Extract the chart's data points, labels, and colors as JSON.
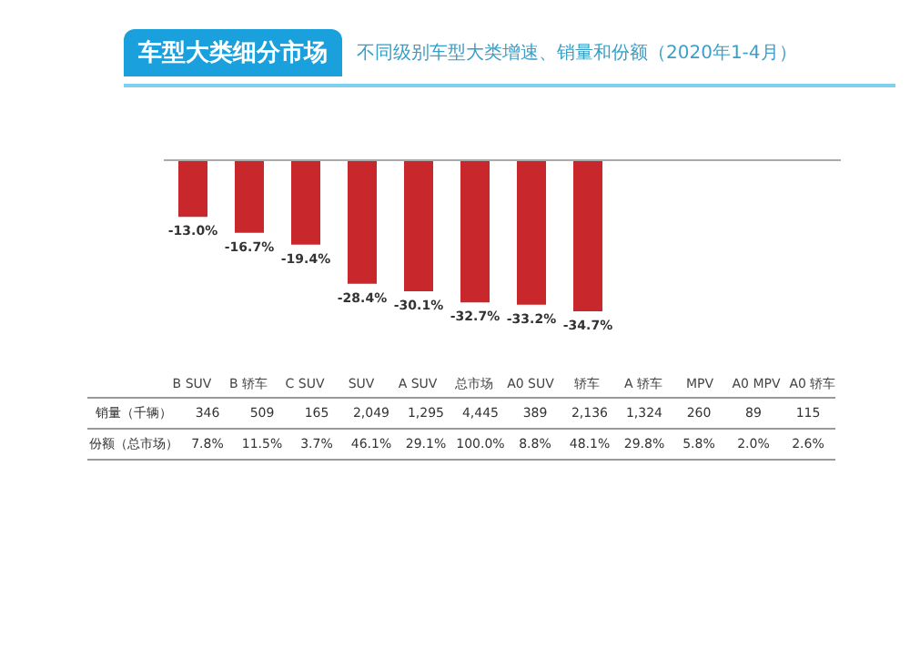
{
  "chart_data": [
    {
      "type": "bar",
      "title": "车型大类细分市场",
      "subtitle": "不同级别车型大类增速、销量和份额（2020年1-4月）",
      "categories": [
        "B SUV",
        "B 轿车",
        "C SUV",
        "SUV",
        "A SUV",
        "总市场",
        "A0 SUV",
        "轿车",
        "A 轿车",
        "MPV",
        "A0 MPV",
        "A0 轿车"
      ],
      "values": [
        -13.0,
        -16.7,
        -19.4,
        -28.4,
        -30.1,
        -32.7,
        -33.2,
        -34.7,
        null,
        null,
        null,
        null
      ],
      "value_labels": [
        "-13.0%",
        "-16.7%",
        "-19.4%",
        "-28.4%",
        "-30.1%",
        "-32.7%",
        "-33.2%",
        "-34.7%",
        null,
        null,
        null,
        null
      ],
      "color": "#c8282c",
      "grid": false,
      "legend": false
    },
    {
      "type": "other",
      "annotations": [
        "销量（千辆）",
        "346",
        "509",
        "165",
        "2,049",
        "1,295",
        "4,445",
        "389",
        "2,136",
        "1,324",
        "260",
        "89",
        "115",
        "份额（总市场）",
        "7.8%",
        "11.5%",
        "3.7%",
        "46.1%",
        "29.1%",
        "100.0%",
        "8.8%",
        "48.1%",
        "29.8%",
        "5.8%",
        "2.0%",
        "2.6%"
      ]
    }
  ]
}
